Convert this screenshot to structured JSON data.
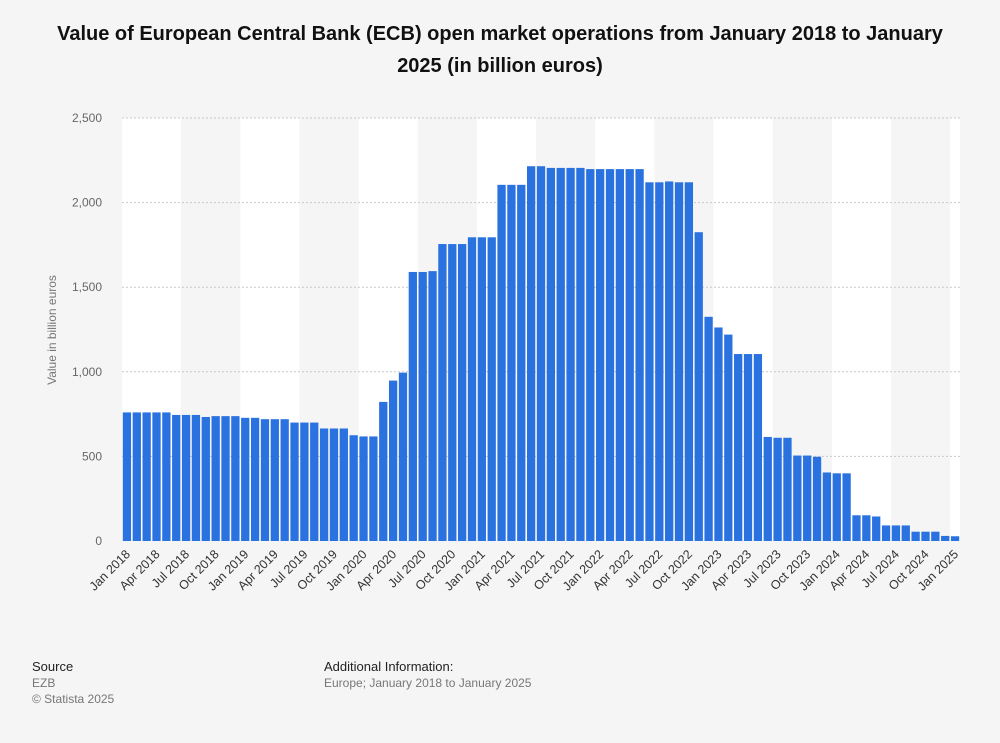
{
  "chart_data": {
    "type": "bar",
    "title": "Value of European Central Bank (ECB) open market operations from January 2018 to January 2025 (in billion euros)",
    "ylabel": "Value in billion euros",
    "ylim": [
      0,
      2500
    ],
    "yticks": [
      "0",
      "500",
      "1,000",
      "1,500",
      "2,000",
      "2,500"
    ],
    "ytick_values": [
      0,
      500,
      1000,
      1500,
      2000,
      2500
    ],
    "grid": true,
    "bar_color": "#2a72e0",
    "band_color": "#ffffff",
    "xtick_labels": [
      "Jan 2018",
      "Apr 2018",
      "Jul 2018",
      "Oct 2018",
      "Jan 2019",
      "Apr 2019",
      "Jul 2019",
      "Oct 2019",
      "Jan 2020",
      "Apr 2020",
      "Jul 2020",
      "Oct 2020",
      "Jan 2021",
      "Apr 2021",
      "Jul 2021",
      "Oct 2021",
      "Jan 2022",
      "Apr 2022",
      "Jul 2022",
      "Oct 2022",
      "Jan 2023",
      "Apr 2023",
      "Jul 2023",
      "Oct 2023",
      "Jan 2024",
      "Apr 2024",
      "Jul 2024",
      "Oct 2024",
      "Jan 2025"
    ],
    "categories": [
      "Jan 2018",
      "Feb 2018",
      "Mar 2018",
      "Apr 2018",
      "May 2018",
      "Jun 2018",
      "Jul 2018",
      "Aug 2018",
      "Sep 2018",
      "Oct 2018",
      "Nov 2018",
      "Dec 2018",
      "Jan 2019",
      "Feb 2019",
      "Mar 2019",
      "Apr 2019",
      "May 2019",
      "Jun 2019",
      "Jul 2019",
      "Aug 2019",
      "Sep 2019",
      "Oct 2019",
      "Nov 2019",
      "Dec 2019",
      "Jan 2020",
      "Feb 2020",
      "Mar 2020",
      "Apr 2020",
      "May 2020",
      "Jun 2020",
      "Jul 2020",
      "Aug 2020",
      "Sep 2020",
      "Oct 2020",
      "Nov 2020",
      "Dec 2020",
      "Jan 2021",
      "Feb 2021",
      "Mar 2021",
      "Apr 2021",
      "May 2021",
      "Jun 2021",
      "Jul 2021",
      "Aug 2021",
      "Sep 2021",
      "Oct 2021",
      "Nov 2021",
      "Dec 2021",
      "Jan 2022",
      "Feb 2022",
      "Mar 2022",
      "Apr 2022",
      "May 2022",
      "Jun 2022",
      "Jul 2022",
      "Aug 2022",
      "Sep 2022",
      "Oct 2022",
      "Nov 2022",
      "Dec 2022",
      "Jan 2023",
      "Feb 2023",
      "Mar 2023",
      "Apr 2023",
      "May 2023",
      "Jun 2023",
      "Jul 2023",
      "Aug 2023",
      "Sep 2023",
      "Oct 2023",
      "Nov 2023",
      "Dec 2023",
      "Jan 2024",
      "Feb 2024",
      "Mar 2024",
      "Apr 2024",
      "May 2024",
      "Jun 2024",
      "Jul 2024",
      "Aug 2024",
      "Sep 2024",
      "Oct 2024",
      "Nov 2024",
      "Dec 2024",
      "Jan 2025"
    ],
    "values": [
      760,
      760,
      760,
      760,
      760,
      745,
      745,
      745,
      733,
      738,
      738,
      738,
      728,
      728,
      720,
      720,
      720,
      700,
      700,
      700,
      665,
      665,
      665,
      625,
      618,
      618,
      822,
      948,
      995,
      1590,
      1590,
      1595,
      1755,
      1755,
      1755,
      1795,
      1795,
      1795,
      2105,
      2105,
      2105,
      2215,
      2215,
      2205,
      2205,
      2205,
      2205,
      2198,
      2198,
      2198,
      2198,
      2198,
      2198,
      2120,
      2120,
      2125,
      2120,
      2120,
      1825,
      1325,
      1262,
      1220,
      1105,
      1105,
      1105,
      615,
      610,
      610,
      505,
      505,
      498,
      405,
      400,
      400,
      152,
      152,
      145,
      92,
      92,
      92,
      55,
      55,
      55,
      30,
      28
    ]
  },
  "footer": {
    "source_heading": "Source",
    "source_name": "EZB",
    "copyright": "© Statista 2025",
    "additional_heading": "Additional Information:",
    "additional_text": "Europe; January 2018 to January 2025"
  }
}
